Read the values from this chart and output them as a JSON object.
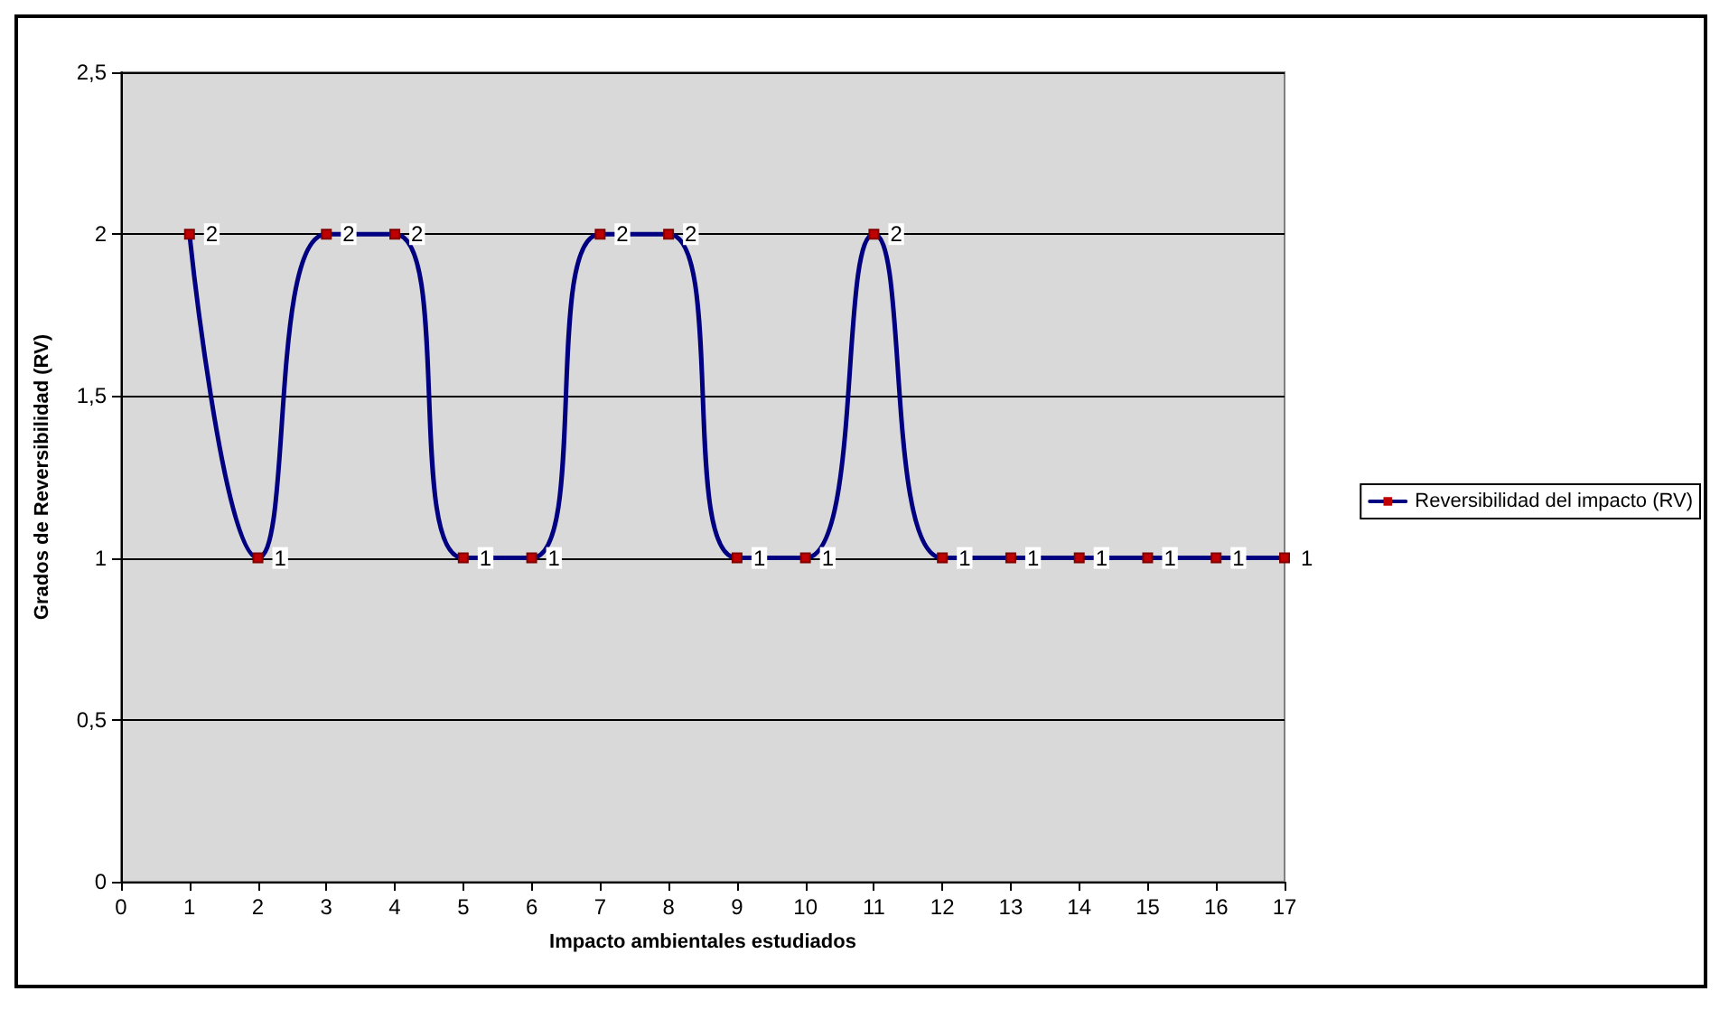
{
  "chart_data": {
    "type": "line",
    "xlabel": "Impacto ambientales estudiados",
    "ylabel": "Grados de Reversibilidad (RV)",
    "x": [
      1,
      2,
      3,
      4,
      5,
      6,
      7,
      8,
      9,
      10,
      11,
      12,
      13,
      14,
      15,
      16,
      17
    ],
    "series": [
      {
        "name": "Reversibilidad del impacto (RV)",
        "color": "#000080",
        "values": [
          2,
          1,
          2,
          2,
          1,
          1,
          2,
          2,
          1,
          1,
          2,
          1,
          1,
          1,
          1,
          1,
          1
        ]
      }
    ],
    "xlim": [
      0,
      17
    ],
    "xticks": [
      0,
      1,
      2,
      3,
      4,
      5,
      6,
      7,
      8,
      9,
      10,
      11,
      12,
      13,
      14,
      15,
      16,
      17
    ],
    "ylim": [
      0,
      2.5
    ],
    "yticks": [
      0,
      {
        "value": 0.5,
        "label": "0,5"
      },
      1,
      {
        "value": 1.5,
        "label": "1,5"
      },
      2,
      {
        "value": 2.5,
        "label": "2,5"
      }
    ],
    "grid": "y",
    "legend": "right",
    "marker": "square",
    "line_style": "solid",
    "data_labels": true
  }
}
